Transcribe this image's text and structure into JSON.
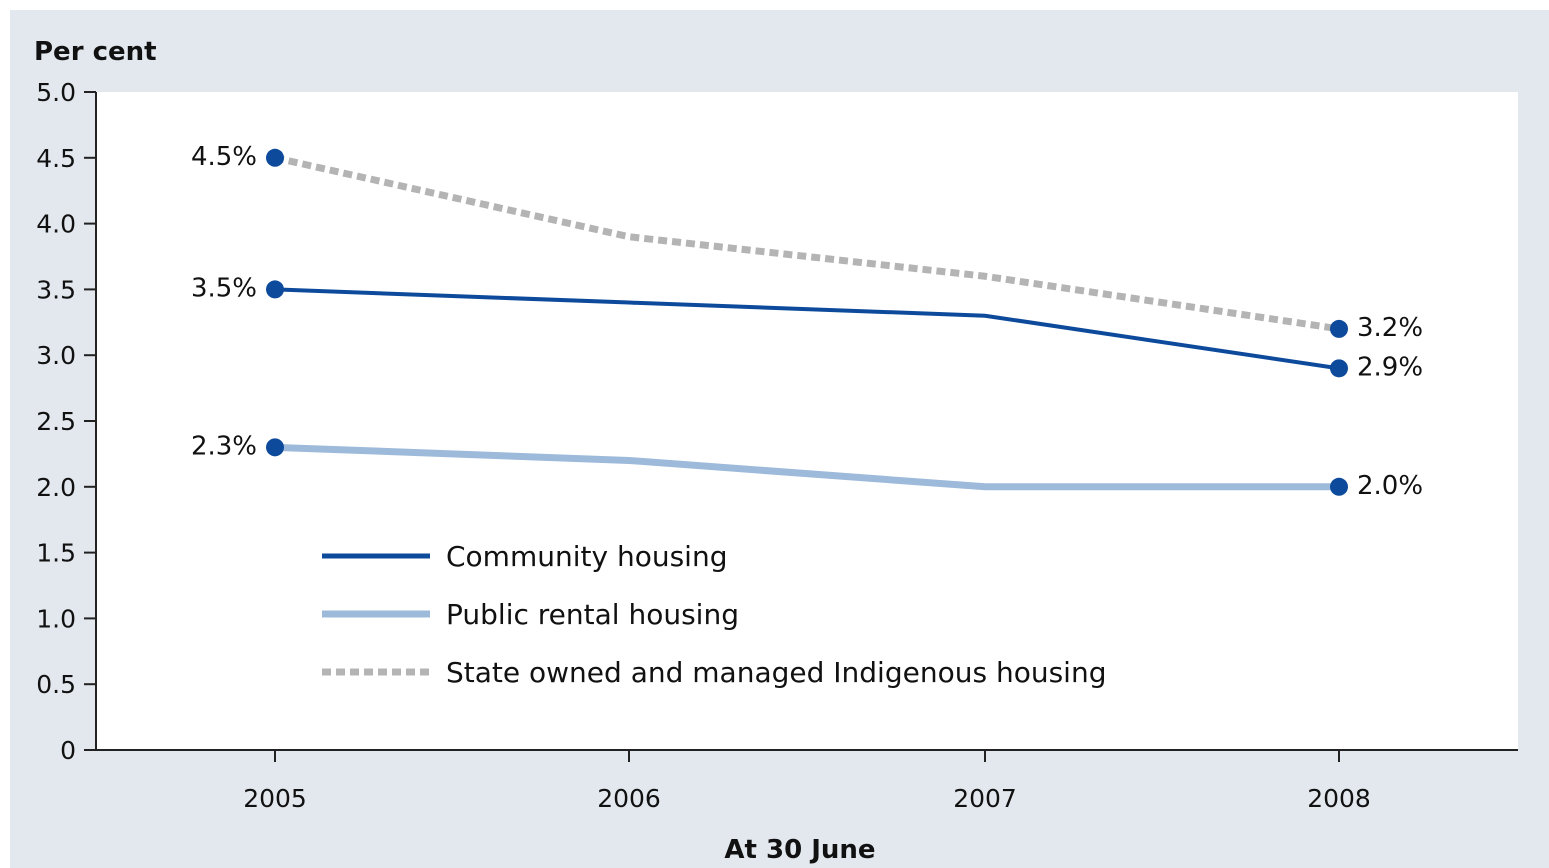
{
  "chart_data": {
    "type": "line",
    "ylabel": "Per cent",
    "xlabel": "At 30 June",
    "categories": [
      "2005",
      "2006",
      "2007",
      "2008"
    ],
    "ylim": [
      0,
      5
    ],
    "yticks": [
      0,
      0.5,
      1.0,
      1.5,
      2.0,
      2.5,
      3.0,
      3.5,
      4.0,
      4.5,
      5.0
    ],
    "ytick_labels": [
      "0",
      "0.5",
      "1.0",
      "1.5",
      "2.0",
      "2.5",
      "3.0",
      "3.5",
      "4.0",
      "4.5",
      "5.0"
    ],
    "grid": false,
    "legend_position": "bottom-left",
    "series": [
      {
        "name": "Community housing",
        "values": [
          3.5,
          3.4,
          3.3,
          2.9
        ],
        "color": "#0d4a9b",
        "style": "solid",
        "end_labels": [
          "3.5%",
          "2.9%"
        ]
      },
      {
        "name": "Public rental housing",
        "values": [
          2.3,
          2.2,
          2.0,
          2.0
        ],
        "color": "#9dbadb",
        "style": "solid-thick",
        "end_labels": [
          "2.3%",
          "2.0%"
        ]
      },
      {
        "name": "State owned and managed Indigenous housing",
        "values": [
          4.5,
          3.9,
          3.6,
          3.2
        ],
        "color": "#b4b4b4",
        "style": "dotted",
        "end_labels": [
          "4.5%",
          "3.2%"
        ]
      }
    ],
    "marker_color": "#0d4a9b"
  }
}
